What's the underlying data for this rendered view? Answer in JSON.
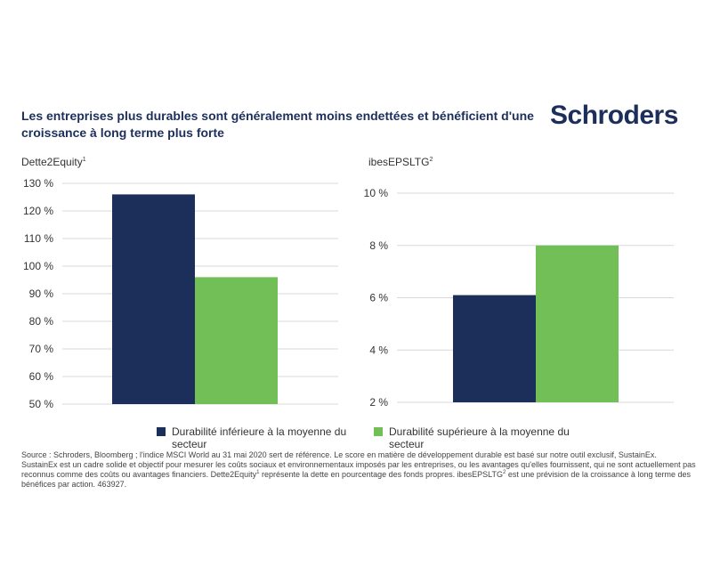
{
  "header": {
    "title": "Les entreprises plus durables sont généralement moins endettées et bénéficient d'une croissance à long terme plus forte",
    "brand": "Schroders"
  },
  "colors": {
    "below_avg": "#1c2f5b",
    "above_avg": "#71bf56",
    "grid": "#d9d9d9"
  },
  "legend": {
    "below": "Durabilité inférieure à la moyenne du secteur",
    "above": "Durabilité supérieure à la moyenne du secteur"
  },
  "chart_data": [
    {
      "type": "bar",
      "title": "Dette2Equity",
      "title_sup": "1",
      "categories": [
        ""
      ],
      "series": [
        {
          "name": "Durabilité inférieure à la moyenne du secteur",
          "values": [
            126
          ]
        },
        {
          "name": "Durabilité supérieure à la moyenne du secteur",
          "values": [
            96
          ]
        }
      ],
      "ylim": [
        50,
        130
      ],
      "yticks": [
        50,
        60,
        70,
        80,
        90,
        100,
        110,
        120,
        130
      ],
      "ytick_labels": [
        "50 %",
        "60 %",
        "70 %",
        "80 %",
        "90 %",
        "100 %",
        "110 %",
        "120 %",
        "130 %"
      ],
      "grid": true
    },
    {
      "type": "bar",
      "title": "ibesEPSLTG",
      "title_sup": "2",
      "categories": [
        ""
      ],
      "series": [
        {
          "name": "Durabilité inférieure à la moyenne du secteur",
          "values": [
            6.1
          ]
        },
        {
          "name": "Durabilité supérieure à la moyenne du secteur",
          "values": [
            8
          ]
        }
      ],
      "ylim": [
        2,
        10
      ],
      "yticks": [
        2,
        4,
        6,
        8,
        10
      ],
      "ytick_labels": [
        "2 %",
        "4 %",
        "6 %",
        "8 %",
        "10 %"
      ],
      "grid": true
    }
  ],
  "notes": {
    "source": "Source : Schroders, Bloomberg ; l'indice MSCI World au 31 mai 2020 sert de référence. Le score en matière de développement durable est basé sur notre outil exclusif, SustainEx.",
    "p2_a": "SustainEx est un cadre solide et objectif pour mesurer les coûts sociaux et environnementaux imposés par les entreprises, ou les avantages qu'elles fournissent, qui ne sont actuellement pas reconnus comme des coûts ou avantages financiers. Dette2Equity",
    "p2_sup1": "1",
    "p2_b": " représente la dette en pourcentage des fonds propres. ibesEPSLTG",
    "p2_sup2": "2",
    "p2_c": " est une prévision de la croissance à long terme des bénéfices par action. 463927."
  }
}
